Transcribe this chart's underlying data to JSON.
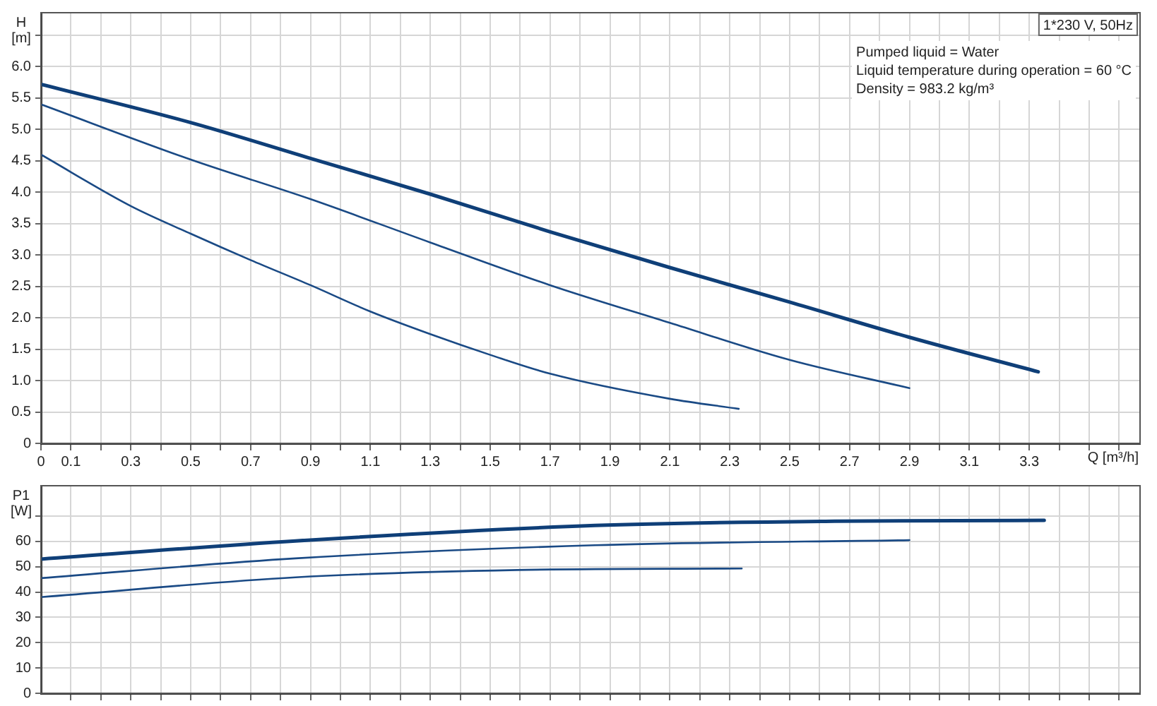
{
  "chart_data": [
    {
      "type": "line",
      "ylabel": "H [m]",
      "xlabel": "Q [m³/h]",
      "xlim": [
        0,
        3.67
      ],
      "ylim": [
        0,
        6.86
      ],
      "xticks": [
        0,
        0.1,
        {
          "value": 0.2,
          "label": null
        },
        0.3,
        {
          "value": 0.4,
          "label": null
        },
        0.5,
        {
          "value": 0.6,
          "label": null
        },
        0.7,
        {
          "value": 0.8,
          "label": null
        },
        0.9,
        {
          "value": 1.0,
          "label": null
        },
        1.1,
        {
          "value": 1.2,
          "label": null
        },
        1.3,
        {
          "value": 1.4,
          "label": null
        },
        1.5,
        {
          "value": 1.6,
          "label": null
        },
        1.7,
        {
          "value": 1.8,
          "label": null
        },
        1.9,
        {
          "value": 2.0,
          "label": null
        },
        2.1,
        {
          "value": 2.2,
          "label": null
        },
        2.3,
        {
          "value": 2.4,
          "label": null
        },
        2.5,
        {
          "value": 2.6,
          "label": null
        },
        2.7,
        {
          "value": 2.8,
          "label": null
        },
        2.9,
        {
          "value": 3.0,
          "label": null
        },
        3.1,
        {
          "value": 3.2,
          "label": null
        },
        3.3,
        {
          "value": 3.4,
          "label": null
        },
        {
          "value": 3.5,
          "label": null
        },
        {
          "value": 3.6,
          "label": null
        }
      ],
      "yticks": [
        0,
        0.5,
        "1.0",
        1.5,
        "2.0",
        2.5,
        "3.0",
        3.5,
        "4.0",
        4.5,
        "5.0",
        5.5,
        "6.0",
        {
          "value": 6.5,
          "label": null
        }
      ],
      "grid": true,
      "marker": "none",
      "line_style": "solid",
      "annotations": [
        "1*230 V, 50Hz",
        "Pumped liquid = Water",
        "Liquid temperature during operation = 60 °C",
        "Density = 983.2 kg/m³"
      ],
      "series": [
        {
          "color": "#0f3f78",
          "x": [
            0,
            0.5,
            0.9,
            1.3,
            1.7,
            2.1,
            2.5,
            2.9,
            3.33
          ],
          "values": [
            5.72,
            5.11,
            4.54,
            3.97,
            3.37,
            2.8,
            2.25,
            1.69,
            1.14
          ]
        },
        {
          "color": "#1a4a85",
          "x": [
            0,
            0.5,
            0.9,
            1.3,
            1.7,
            2.1,
            2.5,
            2.9
          ],
          "values": [
            5.4,
            4.52,
            3.89,
            3.2,
            2.52,
            1.92,
            1.33,
            0.88
          ]
        },
        {
          "color": "#1a4a85",
          "x": [
            0,
            0.3,
            0.5,
            0.7,
            0.9,
            1.1,
            1.3,
            1.5,
            1.7,
            2.1,
            2.33
          ],
          "values": [
            4.6,
            3.78,
            3.34,
            2.92,
            2.52,
            2.1,
            1.74,
            1.41,
            1.11,
            0.71,
            0.55
          ]
        }
      ]
    },
    {
      "type": "line",
      "ylabel": "P1 [W]",
      "xlim": [
        0,
        3.67
      ],
      "ylim": [
        0,
        82
      ],
      "tick_labels": "y",
      "xticks": [
        {
          "value": 0.1,
          "label": null
        },
        {
          "value": 0.2,
          "label": null
        },
        {
          "value": 0.3,
          "label": null
        },
        {
          "value": 0.4,
          "label": null
        },
        {
          "value": 0.5,
          "label": null
        },
        {
          "value": 0.6,
          "label": null
        },
        {
          "value": 0.7,
          "label": null
        },
        {
          "value": 0.8,
          "label": null
        },
        {
          "value": 0.9,
          "label": null
        },
        {
          "value": 1.0,
          "label": null
        },
        {
          "value": 1.1,
          "label": null
        },
        {
          "value": 1.2,
          "label": null
        },
        {
          "value": 1.3,
          "label": null
        },
        {
          "value": 1.4,
          "label": null
        },
        {
          "value": 1.5,
          "label": null
        },
        {
          "value": 1.6,
          "label": null
        },
        {
          "value": 1.7,
          "label": null
        },
        {
          "value": 1.8,
          "label": null
        },
        {
          "value": 1.9,
          "label": null
        },
        {
          "value": 2.0,
          "label": null
        },
        {
          "value": 2.1,
          "label": null
        },
        {
          "value": 2.2,
          "label": null
        },
        {
          "value": 2.3,
          "label": null
        },
        {
          "value": 2.4,
          "label": null
        },
        {
          "value": 2.5,
          "label": null
        },
        {
          "value": 2.6,
          "label": null
        },
        {
          "value": 2.7,
          "label": null
        },
        {
          "value": 2.8,
          "label": null
        },
        {
          "value": 2.9,
          "label": null
        },
        {
          "value": 3.0,
          "label": null
        },
        {
          "value": 3.1,
          "label": null
        },
        {
          "value": 3.2,
          "label": null
        },
        {
          "value": 3.3,
          "label": null
        },
        {
          "value": 3.4,
          "label": null
        },
        {
          "value": 3.5,
          "label": null
        },
        {
          "value": 3.6,
          "label": null
        }
      ],
      "yticks": [
        0,
        10,
        20,
        30,
        40,
        50,
        60,
        {
          "value": 70,
          "label": null
        }
      ],
      "grid": true,
      "marker": "none",
      "line_style": "solid",
      "series": [
        {
          "color": "#0f3f78",
          "x": [
            0,
            0.85,
            1.85,
            2.65,
            3.35
          ],
          "values": [
            53,
            60.2,
            66.3,
            68,
            68.3
          ]
        },
        {
          "color": "#1a4a85",
          "x": [
            0,
            0.85,
            1.85,
            2.9
          ],
          "values": [
            45.5,
            53.3,
            58.5,
            60.5
          ]
        },
        {
          "color": "#1a4a85",
          "x": [
            0,
            0.85,
            1.59,
            2.34
          ],
          "values": [
            38,
            45.8,
            48.7,
            49.3
          ]
        }
      ]
    }
  ]
}
